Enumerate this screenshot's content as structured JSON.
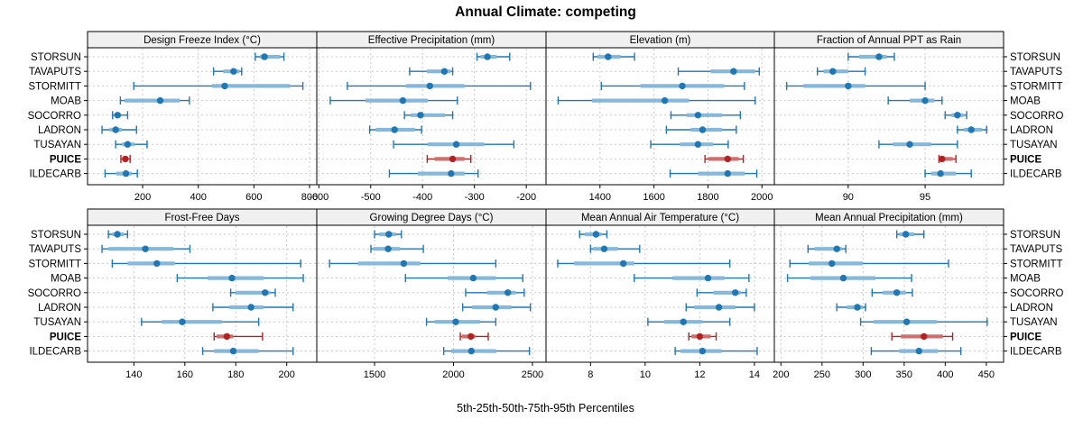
{
  "title": "Annual Climate: competing",
  "footer": "5th-25th-50th-75th-95th Percentiles",
  "colors": {
    "series_main": "#1f77b4",
    "series_band": "#85b8da",
    "highlight_main": "#b22222",
    "highlight_band": "#cf6f6f",
    "grid": "#c9c9c9",
    "panel_header_bg": "#f0f0f0",
    "border": "#000000",
    "text": "#000000"
  },
  "chart_data": {
    "type": "dotplot-percentiles",
    "percentile_labels": [
      "5th",
      "25th",
      "50th",
      "75th",
      "95th"
    ],
    "legend_caption": "5th-25th-50th-75th-95th Percentiles",
    "grid": "on",
    "sites": [
      "STORSUN",
      "TAVAPUTS",
      "STORMITT",
      "MOAB",
      "SOCORRO",
      "LADRON",
      "TUSAYAN",
      "PUICE",
      "ILDECARB"
    ],
    "highlight_site": "PUICE",
    "panels": [
      {
        "title": "Design Freeze Index (°C)",
        "ticks": [
          200,
          400,
          600,
          800
        ],
        "xlim": [
          2,
          826
        ],
        "series": [
          [
            605,
            622,
            638,
            695,
            708
          ],
          [
            455,
            490,
            527,
            548,
            556
          ],
          [
            168,
            449,
            495,
            730,
            776
          ],
          [
            120,
            135,
            263,
            333,
            368
          ],
          [
            92,
            100,
            110,
            122,
            146
          ],
          [
            54,
            81,
            103,
            125,
            178
          ],
          [
            103,
            125,
            146,
            170,
            216
          ],
          [
            122,
            130,
            138,
            146,
            155
          ],
          [
            65,
            105,
            140,
            160,
            181
          ]
        ]
      },
      {
        "title": "Effective Precipitation (mm)",
        "ticks": [
          -600,
          -500,
          -400,
          -300,
          -200
        ],
        "xlim": [
          -604,
          -162
        ],
        "series": [
          [
            -295,
            -288,
            -275,
            -257,
            -232
          ],
          [
            -425,
            -392,
            -358,
            -346,
            -342
          ],
          [
            -545,
            -432,
            -386,
            -319,
            -192
          ],
          [
            -578,
            -510,
            -438,
            -390,
            -333
          ],
          [
            -435,
            -423,
            -404,
            -357,
            -342
          ],
          [
            -502,
            -490,
            -454,
            -415,
            -402
          ],
          [
            -456,
            -390,
            -335,
            -281,
            -224
          ],
          [
            -391,
            -377,
            -342,
            -319,
            -307
          ],
          [
            -464,
            -409,
            -345,
            -319,
            -293
          ]
        ]
      },
      {
        "title": "Elevation (m)",
        "ticks": [
          1400,
          1600,
          1800,
          2000
        ],
        "xlim": [
          1200,
          2046
        ],
        "series": [
          [
            1375,
            1391,
            1430,
            1476,
            1528
          ],
          [
            1690,
            1810,
            1895,
            1975,
            1990
          ],
          [
            1405,
            1550,
            1705,
            1860,
            1935
          ],
          [
            1245,
            1370,
            1640,
            1730,
            1975
          ],
          [
            1663,
            1721,
            1763,
            1853,
            1920
          ],
          [
            1646,
            1736,
            1780,
            1853,
            1905
          ],
          [
            1588,
            1696,
            1763,
            1819,
            1875
          ],
          [
            1789,
            1802,
            1873,
            1914,
            1931
          ],
          [
            1660,
            1763,
            1873,
            1936,
            1981
          ]
        ]
      },
      {
        "title": "Fraction of Annual PPT as Rain",
        "ticks": [
          90,
          95
        ],
        "xlim": [
          85.2,
          100.1
        ],
        "series": [
          [
            90.0,
            90.7,
            92.0,
            92.5,
            93.0
          ],
          [
            88.0,
            88.4,
            89.0,
            90.0,
            91.1
          ],
          [
            86.0,
            87.1,
            90.0,
            91.1,
            95.0
          ],
          [
            92.6,
            94.0,
            95.0,
            95.6,
            96.1
          ],
          [
            96.3,
            96.7,
            97.1,
            97.5,
            97.7
          ],
          [
            97.1,
            97.5,
            98.0,
            98.7,
            99.0
          ],
          [
            92.0,
            92.9,
            94.0,
            95.4,
            97.1
          ],
          [
            95.9,
            96.0,
            96.1,
            96.8,
            97.0
          ],
          [
            95.0,
            95.4,
            96.0,
            97.0,
            98.0
          ]
        ]
      },
      {
        "title": "Frost-Free Days",
        "ticks": [
          140,
          160,
          180,
          200
        ],
        "xlim": [
          121.8,
          211.8
        ],
        "series": [
          [
            130,
            131.5,
            133.5,
            136,
            137.5
          ],
          [
            127.5,
            130,
            144.5,
            155.5,
            162
          ],
          [
            131.5,
            137.5,
            149,
            156,
            205.5
          ],
          [
            157,
            169,
            178.5,
            191,
            206.5
          ],
          [
            178,
            180,
            191.5,
            193.5,
            195.5
          ],
          [
            171,
            177.5,
            186,
            191,
            202.5
          ],
          [
            143,
            151,
            159,
            174.5,
            189
          ],
          [
            171.5,
            172.5,
            176.5,
            179,
            190.5
          ],
          [
            167,
            171.5,
            179,
            189,
            202.5
          ]
        ]
      },
      {
        "title": "Growing Degree Days (°C)",
        "ticks": [
          1500,
          2000,
          2500
        ],
        "xlim": [
          1134,
          2586
        ],
        "series": [
          [
            1500,
            1530,
            1590,
            1633,
            1670
          ],
          [
            1477,
            1490,
            1586,
            1662,
            1809
          ],
          [
            1215,
            1395,
            1685,
            1790,
            2268
          ],
          [
            1696,
            1963,
            2125,
            2268,
            2439
          ],
          [
            2077,
            2214,
            2344,
            2395,
            2448
          ],
          [
            2058,
            2119,
            2267,
            2367,
            2487
          ],
          [
            1829,
            1881,
            2014,
            2167,
            2268
          ],
          [
            2043,
            2052,
            2110,
            2138,
            2220
          ],
          [
            1938,
            1986,
            2113,
            2271,
            2481
          ]
        ]
      },
      {
        "title": "Mean Annual Air Temperature (°C)",
        "ticks": [
          8,
          10,
          12,
          14
        ],
        "xlim": [
          6.37,
          14.73
        ],
        "series": [
          [
            7.6,
            7.8,
            8.2,
            8.4,
            8.6
          ],
          [
            8.0,
            8.1,
            8.5,
            9.0,
            9.8
          ],
          [
            6.8,
            7.4,
            9.2,
            9.6,
            13.1
          ],
          [
            9.6,
            11.0,
            12.3,
            12.9,
            13.8
          ],
          [
            11.9,
            12.5,
            13.3,
            13.5,
            13.7
          ],
          [
            11.5,
            11.8,
            12.7,
            13.3,
            14.0
          ],
          [
            10.1,
            10.7,
            11.4,
            12.1,
            13.1
          ],
          [
            11.6,
            11.7,
            12.0,
            12.4,
            12.6
          ],
          [
            11.1,
            11.3,
            12.1,
            12.8,
            14.1
          ]
        ]
      },
      {
        "title": "Mean Annual Precipitation (mm)",
        "ticks": [
          200,
          250,
          300,
          350,
          400,
          450
        ],
        "xlim": [
          192,
          471
        ],
        "series": [
          [
            341,
            344,
            352,
            362,
            374
          ],
          [
            233,
            241,
            268,
            274,
            279
          ],
          [
            211,
            234,
            262,
            300,
            404
          ],
          [
            208,
            236,
            276,
            315,
            359
          ],
          [
            311,
            324,
            341,
            352,
            360
          ],
          [
            268,
            280,
            293,
            300,
            303
          ],
          [
            297,
            313,
            353,
            390,
            451
          ],
          [
            335,
            346,
            374,
            397,
            409
          ],
          [
            310,
            344,
            368,
            391,
            419
          ]
        ]
      }
    ]
  }
}
